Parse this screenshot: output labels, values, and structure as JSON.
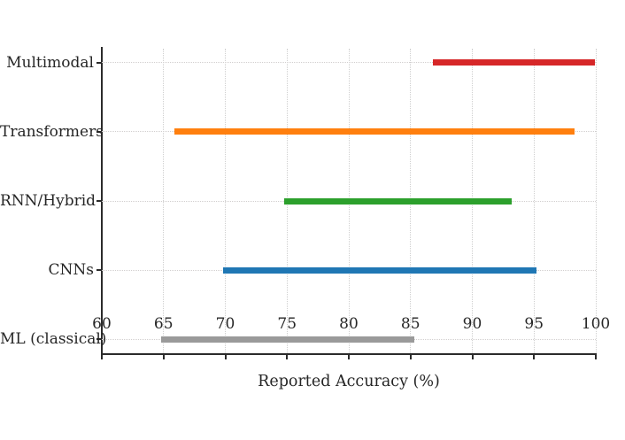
{
  "figure": {
    "background_color": "#ffffff",
    "text_color": "#262626",
    "grid_color": "#cfcfcf",
    "spine_color": "#2b2b2b"
  },
  "chart_data": {
    "type": "bar",
    "orientation": "horizontal",
    "variant": "range",
    "title": "",
    "xlabel": "Reported Accuracy (%)",
    "ylabel": "",
    "xlim": [
      60,
      100
    ],
    "xticks": [
      60,
      65,
      70,
      75,
      80,
      85,
      90,
      95,
      100
    ],
    "grid": true,
    "legend": false,
    "categories_top_to_bottom": [
      "Multimodal",
      "Transformers",
      "RNN/Hybrid",
      "CNNs",
      "ML (classical)"
    ],
    "bars": [
      {
        "category": "Multimodal",
        "min": 86.8,
        "max": 99.9,
        "color": "#d62728"
      },
      {
        "category": "Transformers",
        "min": 65.9,
        "max": 98.3,
        "color": "#ff7f0e"
      },
      {
        "category": "RNN/Hybrid",
        "min": 74.8,
        "max": 93.2,
        "color": "#2ca02c"
      },
      {
        "category": "CNNs",
        "min": 69.8,
        "max": 95.2,
        "color": "#1f77b4"
      },
      {
        "category": "ML (classical)",
        "min": 64.8,
        "max": 85.3,
        "color": "#9a9a9a"
      }
    ]
  }
}
